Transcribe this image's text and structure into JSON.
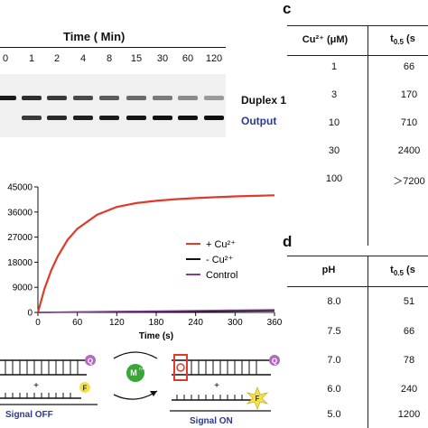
{
  "gel": {
    "title": "Time ( Min)",
    "lanes": [
      "0",
      "1",
      "2",
      "4",
      "8",
      "15",
      "30",
      "60",
      "120"
    ],
    "duplex_label": "Duplex 1",
    "output_label": "Output"
  },
  "table_c": {
    "letter": "c",
    "header_left": "Cu²⁺ (μM)",
    "header_right_main": "t",
    "header_right_sub": "0.5",
    "header_right_suffix": " (s",
    "rows": [
      {
        "conc": "1",
        "t": "66"
      },
      {
        "conc": "3",
        "t": "170"
      },
      {
        "conc": "10",
        "t": "710"
      },
      {
        "conc": "30",
        "t": "2400"
      },
      {
        "conc": "100",
        "t": "＞7200"
      }
    ]
  },
  "table_d": {
    "letter": "d",
    "header_left": "pH",
    "header_right_main": "t",
    "header_right_sub": "0.5",
    "header_right_suffix": " (s",
    "rows": [
      {
        "ph": "8.0",
        "t": "51"
      },
      {
        "ph": "7.5",
        "t": "66"
      },
      {
        "ph": "7.0",
        "t": "78"
      },
      {
        "ph": "6.0",
        "t": "240"
      },
      {
        "ph": "5.0",
        "t": "1200"
      }
    ]
  },
  "chart_data": {
    "type": "line",
    "title": "",
    "xlabel": "Time (s)",
    "ylabel": "",
    "xlim": [
      0,
      360
    ],
    "ylim": [
      0,
      45000
    ],
    "x_ticks": [
      0,
      60,
      120,
      180,
      240,
      300,
      360
    ],
    "y_ticks": [
      0,
      9000,
      18000,
      27000,
      36000,
      45000
    ],
    "legend_position": "right",
    "series": [
      {
        "name": "+ Cu²⁺",
        "color": "#e03a2a",
        "x": [
          0,
          10,
          20,
          30,
          45,
          60,
          90,
          120,
          150,
          180,
          210,
          240,
          270,
          300,
          330,
          360
        ],
        "y": [
          0,
          8500,
          15000,
          20000,
          26000,
          30000,
          35000,
          37800,
          39200,
          40000,
          40600,
          41000,
          41300,
          41600,
          41800,
          42000
        ]
      },
      {
        "name": "- Cu²⁺",
        "color": "#111111",
        "x": [
          0,
          60,
          120,
          180,
          240,
          300,
          360
        ],
        "y": [
          0,
          100,
          200,
          300,
          400,
          500,
          600
        ]
      },
      {
        "name": "Control",
        "color": "#8a3a9a",
        "x": [
          0,
          60,
          120,
          180,
          240,
          300,
          360
        ],
        "y": [
          0,
          200,
          350,
          500,
          650,
          800,
          950
        ]
      }
    ]
  },
  "schematic": {
    "quencher": "Q",
    "fluorophore": "F",
    "plus": "+",
    "metal": "M",
    "metal_charge": "n+",
    "signal_off": "Signal OFF",
    "signal_on": "Signal ON",
    "colors": {
      "quencher": "#b06ac0",
      "fluorophore": "#f4e24a",
      "metal": "#3aa63a",
      "cut": "#e03a2a",
      "signal": "#2b3a8f"
    }
  }
}
